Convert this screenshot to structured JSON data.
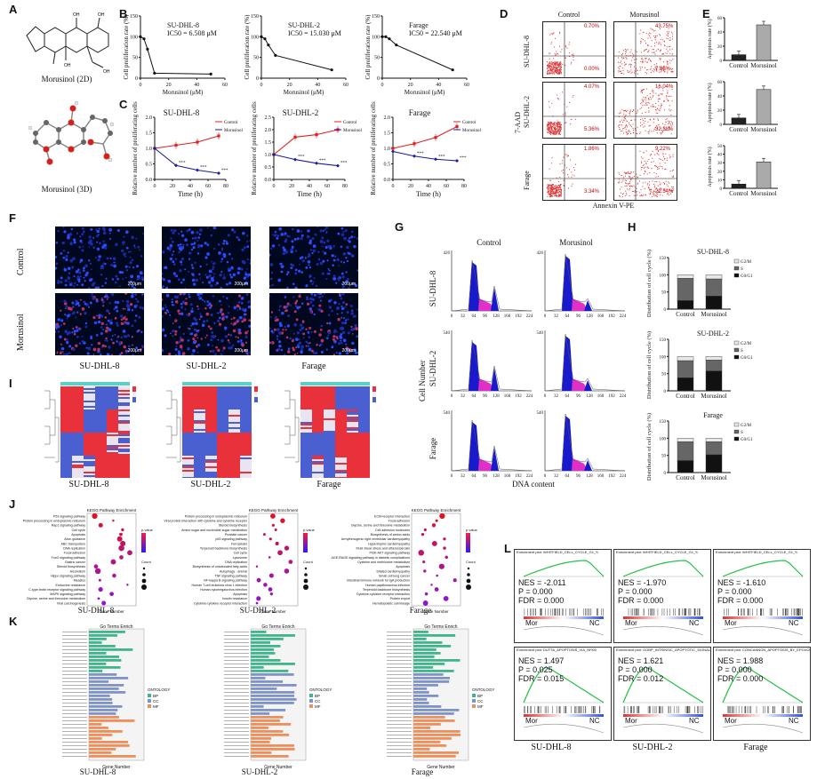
{
  "panels": {
    "A": "A",
    "B": "B",
    "C": "C",
    "D": "D",
    "E": "E",
    "F": "F",
    "G": "G",
    "H": "H",
    "I": "I",
    "J": "J",
    "K": "K",
    "L": "L"
  },
  "panelA": {
    "caption_2d": "Morusinol (2D)",
    "caption_3d": "Morusinol (3D)"
  },
  "panelB": {
    "ylabel": "Cell proliferation rate (%)",
    "xlabel": "Morusinol (μM)",
    "charts": [
      {
        "cell": "SU-DHL-8",
        "ic50": "IC50 = 6.508 μM"
      },
      {
        "cell": "SU-DHL-2",
        "ic50": "IC50 = 15.030 μM"
      },
      {
        "cell": "Farage",
        "ic50": "IC50 = 22.540 μM"
      }
    ],
    "yticks": [
      "0",
      "50",
      "100",
      "150"
    ],
    "xticks": [
      "0",
      "20",
      "40",
      "60"
    ]
  },
  "panelC": {
    "ylabel": "Relative number of proliferating cells",
    "xlabel": "Time (h)",
    "legend_control": "Control",
    "legend_morusinol": "Morusinol",
    "xticks": [
      "0",
      "20",
      "40",
      "60",
      "80"
    ],
    "charts": [
      {
        "cell": "SU-DHL-8",
        "yticks": [
          "0.0",
          "0.5",
          "1.0",
          "1.5",
          "2.0"
        ]
      },
      {
        "cell": "SU-DHL-2",
        "yticks": [
          "0.0",
          "0.5",
          "1.0",
          "1.5",
          "2.0",
          "2.5"
        ]
      },
      {
        "cell": "Farage",
        "yticks": [
          "0.0",
          "0.5",
          "1.0",
          "1.5",
          "2.0"
        ]
      }
    ],
    "stars": "***"
  },
  "panelD": {
    "col_control": "Control",
    "col_morusinol": "Morusinol",
    "row_labels": [
      "SU-DHL-8",
      "SU-DHL-2",
      "Farage"
    ],
    "ylabel": "7-AAD",
    "xlabel": "Annexin V-PE",
    "quadrants": [
      {
        "c_ur": "0.70%",
        "c_lr": "0.00%",
        "m_ur": "43.75%",
        "m_lr": "7.88%"
      },
      {
        "c_ur": "4.07%",
        "c_lr": "5.36%",
        "m_ur": "16.04%",
        "m_lr": "32.38%"
      },
      {
        "c_ur": "1.86%",
        "c_lr": "3.34%",
        "m_ur": "9.22%",
        "m_lr": "22.54%"
      }
    ]
  },
  "panelE": {
    "ylabel": "Apoptosis rate (%)",
    "categories": [
      "Control",
      "Morusinol"
    ]
  },
  "panelF": {
    "row_labels": [
      "Control",
      "Morusinol"
    ],
    "col_labels": [
      "SU-DHL-8",
      "SU-DHL-2",
      "Farage"
    ],
    "scale": "200μm"
  },
  "panelG": {
    "col_control": "Control",
    "col_morusinol": "Morusinol",
    "row_labels": [
      "SU-DHL-8",
      "SU-DHL-2",
      "Farage"
    ],
    "ylabel": "Cell Number",
    "xlabel": "DNA content",
    "xticks": [
      "0",
      "32",
      "64",
      "96",
      "128",
      "160",
      "192",
      "224"
    ],
    "ytop": [
      [
        "426",
        "426"
      ],
      [
        "540",
        "540"
      ],
      [
        "540",
        "540"
      ]
    ]
  },
  "panelH": {
    "titles": [
      "SU-DHL-8",
      "SU-DHL-2",
      "Farage"
    ],
    "ylabel": "Distribution of cell cycle (%)",
    "categories": [
      "Control",
      "Morusinol"
    ],
    "legend": [
      "G2/M",
      "S",
      "G0/G1"
    ],
    "yticks": [
      "0",
      "50",
      "100",
      "150"
    ]
  },
  "panelI": {
    "labels": [
      "SU-DHL-8",
      "SU-DHL-2",
      "Farage"
    ]
  },
  "panelJ": {
    "title": "KEGG Pathway Enrichment",
    "xlabel": "Gene Number",
    "labels": [
      "SU-DHL-8",
      "SU-DHL-2",
      "Farage"
    ],
    "pvalue": "p.value",
    "count": "Count",
    "terms1": [
      "P53 signaling pathway",
      "Protein processing in endoplasmic reticulum",
      "Rap1 signaling pathway",
      "Cell cycle",
      "Apoptosis",
      "Axon guidance",
      "ABC transporters",
      "DNA replication",
      "Focal adhesion",
      "FoxO signaling pathway",
      "Gastric cancer",
      "Steroid biosynthesis",
      "Alcoholism",
      "Hippo signaling pathway",
      "Measles",
      "Endocrine resistance",
      "C-type lectin receptor signaling pathway",
      "MAPK signaling pathway",
      "Glycine, serine and threonine metabolism",
      "Viral carcinogenesis"
    ],
    "terms2": [
      "Protein processing in endoplasmic reticulum",
      "Viral protein interaction with cytokine and cytokine receptor",
      "Steroid biosynthesis",
      "Amino sugar and nucleotide sugar metabolism",
      "Prostate cancer",
      "p53 signaling pathway",
      "Ferroptosis",
      "Terpenoid backbone biosynthesis",
      "Cell cycle",
      "Lysosome",
      "DNA replication",
      "Biosynthesis of unsaturated fatty acids",
      "Autophagy - animal",
      "TNF signaling pathway",
      "NF-kappa B signaling pathway",
      "Human T-cell leukemia virus 1 infection",
      "Human cytomegalovirus infection",
      "Apoptosis",
      "Insulin resistance",
      "Cytokine-cytokine receptor interaction"
    ],
    "terms3": [
      "ECM-receptor interaction",
      "Focal adhesion",
      "Glycine, serine and threonine metabolism",
      "Cell adhesion molecules",
      "Biosynthesis of amino acids",
      "Arrhythmogenic right ventricular cardiomyopathy",
      "Hypertrophic cardiomyopathy",
      "Fluid shear stress and atherosclerosis",
      "PI3K-AKT signaling pathway",
      "AGE-RAGE signaling pathway in diabetic complications",
      "Cysteine and methionine metabolism",
      "Apoptosis",
      "Dilated cardiomyopathy",
      "Small cell lung cancer",
      "Intestinal immune network for IgA production",
      "Human papillomavirus infection",
      "Terpenoid backbone biosynthesis",
      "Cytokine-cytokine receptor interaction",
      "Protein export",
      "Hematopoietic cell lineage"
    ]
  },
  "panelK": {
    "title": "Go Terms Enrich",
    "xlabel": "Gene Number",
    "labels": [
      "SU-DHL-8",
      "SU-DHL-2",
      "Farage"
    ],
    "ontology": "ONTOLOGY",
    "ont": [
      "BP",
      "CC",
      "MF"
    ],
    "colors": {
      "BP": "#3fb58a",
      "CC": "#7f93c8",
      "MF": "#ef8e5a"
    }
  },
  "panelL": {
    "plots": [
      {
        "title": "Enrichment plot: WHITFIELD_CELL_CYCLE_G1_S",
        "nes": "NES = -2.011",
        "p": "P = 0.000",
        "fdr": "FDR = 0.000"
      },
      {
        "title": "Enrichment plot: WHITFIELD_CELL_CYCLE_G1_S",
        "nes": "NES = -1.970",
        "p": "P = 0.000",
        "fdr": "FDR = 0.000"
      },
      {
        "title": "Enrichment plot: WHITFIELD_CELL_CYCLE_G1_S",
        "nes": "NES = -1.610",
        "p": "P = 0.000",
        "fdr": "FDR = 0.000"
      },
      {
        "title": "Enrichment plot: DUTTA_APOPTOSIS_VIA_NFKB",
        "nes": "NES = 1.497",
        "p": "P = 0.025",
        "fdr": "FDR = 0.015"
      },
      {
        "title": "Enrichment plot: GOBP_INTRINSIC_APOPTOTIC_SIGNALING_PATHWAY_IN_RESPONSE_TO_ENDOPLASMIC_RETICULUM_STRESS",
        "nes": "NES = 1.621",
        "p": "P = 0.000",
        "fdr": "FDR = 0.012"
      },
      {
        "title": "Enrichment plot: CONCANNON_APOPTOSIS_BY_EPOXOMICIN_UP",
        "nes": "NES = 1.988",
        "p": "P = 0.000",
        "fdr": "FDR = 0.000"
      }
    ],
    "mor": "Mor",
    "nc": "NC",
    "labels": [
      "SU-DHL-8",
      "SU-DHL-2",
      "Farage"
    ]
  },
  "chart_data": [
    {
      "type": "line",
      "title": "SU-DHL-8",
      "subtitle": "IC50 = 6.508 μM",
      "xlabel": "Morusinol (μM)",
      "ylabel": "Cell proliferation rate (%)",
      "xlim": [
        0,
        60
      ],
      "ylim": [
        0,
        150
      ],
      "x": [
        0,
        2.5,
        5,
        10,
        50
      ],
      "series": [
        {
          "values": [
            100,
            95,
            70,
            12,
            10
          ]
        }
      ]
    },
    {
      "type": "line",
      "title": "SU-DHL-2",
      "subtitle": "IC50 = 15.030 μM",
      "xlabel": "Morusinol (μM)",
      "ylabel": "Cell proliferation rate (%)",
      "xlim": [
        0,
        60
      ],
      "ylim": [
        0,
        150
      ],
      "x": [
        0,
        2.5,
        5,
        10,
        50
      ],
      "series": [
        {
          "values": [
            100,
            95,
            80,
            55,
            20
          ]
        }
      ]
    },
    {
      "type": "line",
      "title": "Farage",
      "subtitle": "IC50 = 22.540 μM",
      "xlabel": "Morusinol (μM)",
      "ylabel": "Cell proliferation rate (%)",
      "xlim": [
        0,
        60
      ],
      "ylim": [
        0,
        150
      ],
      "x": [
        0,
        2.5,
        5,
        10,
        50
      ],
      "series": [
        {
          "values": [
            100,
            100,
            95,
            80,
            20
          ]
        }
      ]
    },
    {
      "type": "line",
      "title": "SU-DHL-8",
      "xlabel": "Time (h)",
      "ylabel": "Relative number of proliferating cells",
      "xlim": [
        0,
        80
      ],
      "ylim": [
        0,
        2.0
      ],
      "x": [
        0,
        24,
        48,
        72
      ],
      "series": [
        {
          "name": "Control",
          "values": [
            1.0,
            1.1,
            1.2,
            1.4
          ]
        },
        {
          "name": "Morusinol",
          "values": [
            1.0,
            0.45,
            0.3,
            0.2
          ]
        }
      ]
    },
    {
      "type": "line",
      "title": "SU-DHL-2",
      "xlabel": "Time (h)",
      "ylabel": "Relative number of proliferating cells",
      "xlim": [
        0,
        80
      ],
      "ylim": [
        0,
        2.5
      ],
      "x": [
        0,
        24,
        48,
        72
      ],
      "series": [
        {
          "name": "Control",
          "values": [
            1.0,
            1.7,
            1.8,
            2.0
          ]
        },
        {
          "name": "Morusinol",
          "values": [
            1.0,
            0.8,
            0.65,
            0.55
          ]
        }
      ]
    },
    {
      "type": "line",
      "title": "Farage",
      "xlabel": "Time (h)",
      "ylabel": "Relative number of proliferating cells",
      "xlim": [
        0,
        80
      ],
      "ylim": [
        0,
        2.0
      ],
      "x": [
        0,
        24,
        48,
        72
      ],
      "series": [
        {
          "name": "Control",
          "values": [
            1.0,
            1.15,
            1.35,
            1.7
          ]
        },
        {
          "name": "Morusinol",
          "values": [
            0.9,
            0.75,
            0.65,
            0.6
          ]
        }
      ]
    },
    {
      "type": "bar",
      "ylabel": "Apoptosis rate (%)",
      "categories": [
        "Control",
        "Morusinol"
      ],
      "ylim": [
        0,
        60
      ],
      "values": [
        8,
        50
      ]
    },
    {
      "type": "bar",
      "ylabel": "Apoptosis rate (%)",
      "categories": [
        "Control",
        "Morusinol"
      ],
      "ylim": [
        0,
        60
      ],
      "values": [
        9,
        49
      ]
    },
    {
      "type": "bar",
      "ylabel": "Apoptosis rate (%)",
      "categories": [
        "Control",
        "Morusinol"
      ],
      "ylim": [
        0,
        50
      ],
      "values": [
        5,
        31
      ]
    },
    {
      "type": "bar",
      "title": "SU-DHL-8",
      "ylabel": "Distribution of cell cycle (%)",
      "categories": [
        "Control",
        "Morusinol"
      ],
      "ylim": [
        0,
        150
      ],
      "series": [
        {
          "name": "G0/G1",
          "values": [
            25,
            38
          ]
        },
        {
          "name": "S",
          "values": [
            65,
            50
          ]
        },
        {
          "name": "G2/M",
          "values": [
            10,
            12
          ]
        }
      ]
    },
    {
      "type": "bar",
      "title": "SU-DHL-2",
      "ylabel": "Distribution of cell cycle (%)",
      "categories": [
        "Control",
        "Morusinol"
      ],
      "ylim": [
        0,
        150
      ],
      "series": [
        {
          "name": "G0/G1",
          "values": [
            38,
            58
          ]
        },
        {
          "name": "S",
          "values": [
            50,
            32
          ]
        },
        {
          "name": "G2/M",
          "values": [
            12,
            10
          ]
        }
      ]
    },
    {
      "type": "bar",
      "title": "Farage",
      "ylabel": "Distribution of cell cycle (%)",
      "categories": [
        "Control",
        "Morusinol"
      ],
      "ylim": [
        0,
        150
      ],
      "series": [
        {
          "name": "G0/G1",
          "values": [
            35,
            52
          ]
        },
        {
          "name": "S",
          "values": [
            55,
            38
          ]
        },
        {
          "name": "G2/M",
          "values": [
            10,
            10
          ]
        }
      ]
    }
  ]
}
